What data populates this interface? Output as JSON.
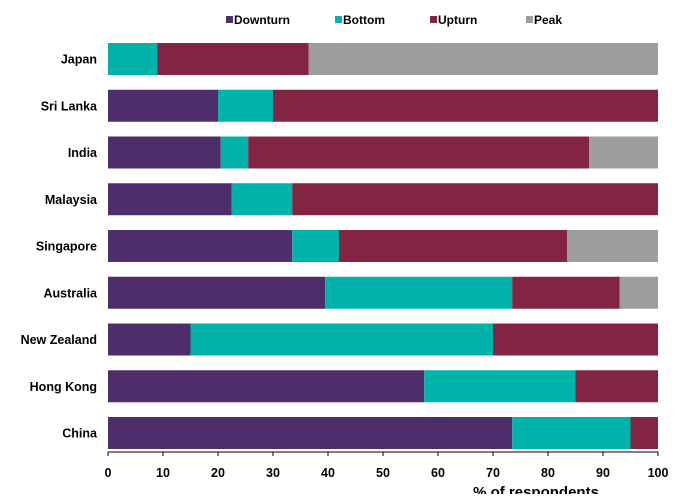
{
  "chart_data": {
    "type": "bar",
    "orientation": "horizontal",
    "stacked": true,
    "categories": [
      "Japan",
      "Sri Lanka",
      "India",
      "Malaysia",
      "Singapore",
      "Australia",
      "New Zealand",
      "Hong Kong",
      "China"
    ],
    "series": [
      {
        "name": "Downturn",
        "color": "#4e2d6b",
        "values": [
          0,
          20,
          20.5,
          22.5,
          33.5,
          39.5,
          15,
          57.5,
          73.5
        ]
      },
      {
        "name": "Bottom",
        "color": "#00b3aa",
        "values": [
          9,
          10,
          5,
          11,
          8.5,
          34,
          55,
          27.5,
          21.5
        ]
      },
      {
        "name": "Upturn",
        "color": "#832443",
        "values": [
          27.5,
          70,
          62,
          66.5,
          41.5,
          19.5,
          30,
          15,
          5
        ]
      },
      {
        "name": "Peak",
        "color": "#9d9d9d",
        "values": [
          63.5,
          0,
          12.5,
          0,
          16.5,
          7,
          0,
          0,
          0
        ]
      }
    ],
    "x_ticks": [
      "0",
      "10",
      "20",
      "30",
      "40",
      "50",
      "60",
      "70",
      "80",
      "90",
      "100"
    ],
    "xlim": [
      0,
      100
    ],
    "xlabel": "% of respondents",
    "ylabel": "",
    "title": "",
    "legend_position": "top",
    "grid": false
  }
}
